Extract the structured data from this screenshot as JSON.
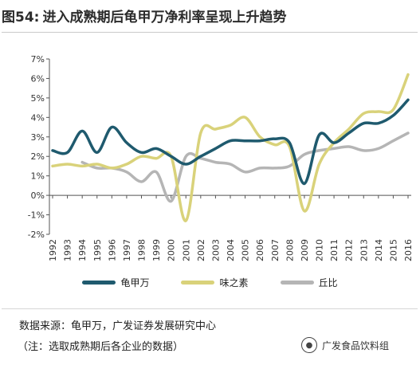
{
  "figure": {
    "number": "图54:",
    "title": "进入成熟期后龟甲万净利率呈现上升趋势"
  },
  "source": "数据来源：龟甲万，广发证券发展研究中心",
  "note": "（注：选取成熟期后各企业的数据）",
  "watermark": {
    "text": "广发食品饮料组",
    "icon": "wechat-icon"
  },
  "chart_data": {
    "type": "line",
    "title": "",
    "xlabel": "",
    "ylabel": "",
    "x": [
      "1992",
      "1993",
      "1994",
      "1995",
      "1996",
      "1997",
      "1998",
      "1999",
      "2000",
      "2001",
      "2002",
      "2003",
      "2004",
      "2005",
      "2006",
      "2007",
      "2008",
      "2009",
      "2010",
      "2011",
      "2012",
      "2013",
      "2014",
      "2015",
      "2016"
    ],
    "ylim": [
      -2,
      7
    ],
    "yticks": [
      "-2%",
      "-1%",
      "0%",
      "1%",
      "2%",
      "3%",
      "4%",
      "5%",
      "6%",
      "7%"
    ],
    "grid": false,
    "legend_position": "bottom",
    "series": [
      {
        "name": "龟甲万",
        "color": "#1f5a6e",
        "values": [
          2.3,
          2.2,
          3.3,
          2.2,
          3.5,
          2.7,
          2.2,
          2.4,
          2.0,
          1.6,
          2.0,
          2.4,
          2.8,
          2.8,
          2.8,
          2.9,
          2.7,
          0.6,
          3.1,
          2.7,
          3.2,
          3.7,
          3.7,
          4.1,
          4.9
        ]
      },
      {
        "name": "味之素",
        "color": "#d9d27a",
        "values": [
          1.5,
          1.6,
          1.5,
          1.6,
          1.4,
          1.6,
          2.0,
          1.9,
          2.0,
          -1.3,
          3.2,
          3.4,
          3.6,
          4.0,
          3.0,
          2.6,
          2.5,
          -0.8,
          1.6,
          2.7,
          3.4,
          4.2,
          4.3,
          4.4,
          6.2
        ]
      },
      {
        "name": "丘比",
        "color": "#b5b5b5",
        "values": [
          null,
          null,
          1.7,
          1.4,
          1.4,
          1.2,
          0.7,
          1.2,
          -0.3,
          2.0,
          1.9,
          1.7,
          1.6,
          1.2,
          1.4,
          1.4,
          1.5,
          2.1,
          2.3,
          2.4,
          2.5,
          2.3,
          2.4,
          2.8,
          3.2
        ]
      }
    ]
  }
}
